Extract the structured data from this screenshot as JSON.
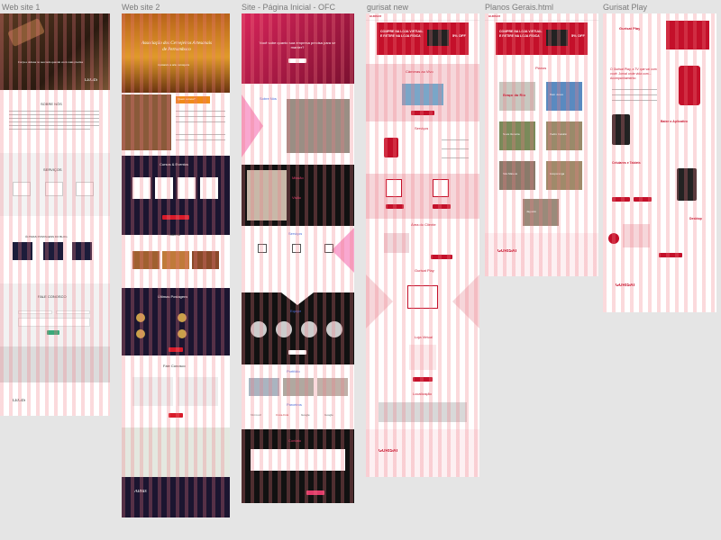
{
  "canvas": {
    "background": "#e5e5e5",
    "grid_color": "#f0788280"
  },
  "frames": [
    {
      "label": "Web site 1"
    },
    {
      "label": "Web site 2"
    },
    {
      "label": "Site - Página Inicial - OFC"
    },
    {
      "label": "gurisat new"
    },
    {
      "label": "Planos Gerais.html"
    },
    {
      "label": "Gurisat Play"
    }
  ],
  "site1": {
    "hero_text": "Força e defesa no seu lado quando você mais precisa",
    "brand": "LEGIS",
    "sobre_title": "SOBRE NÓS",
    "servicos_title": "SERVIÇOS",
    "blog_title": "ÚLTIMAS POSTAGENS DO BLOG",
    "contact_title": "FALE CONOSCO",
    "footer_brand": "LEGIS"
  },
  "site2": {
    "hero_title": "Associação dos Cervejeiros Artesanais de Pernambuco",
    "hero_sub": "Apoiando a arte cervejeira",
    "sobre_title": "Quem somos?",
    "cursos_title": "Cursos & Eventos",
    "galeria_title": "Galeria",
    "posts_title": "Últimas Postagens",
    "contact_title": "Fale Conosco",
    "footer_logo": "Albus"
  },
  "site3": {
    "hero_text": "Você sabe quanto sua empresa precisa para se manter?",
    "sobre_title": "Sobre Nós",
    "missao_title": "Missão",
    "visao_title": "Visão",
    "servicos_title": "Serviços",
    "equipe_title": "Equipe",
    "portfolio_title": "Portfólio",
    "parceiros_title": "Parceiros",
    "contato_title": "Contato",
    "partners": [
      "Microsoft",
      "Coca-Cola",
      "Google",
      "Google"
    ]
  },
  "site4": {
    "logo": "GURISAT",
    "promo": "COMPRE NA LOJA VIRTUAL E RETIRE NA LOJA FÍSICA",
    "discount": "5% OFF",
    "cameras_title": "Câmeras ao Vivo",
    "servicos_title": "Serviços",
    "area_title": "Área do Cliente",
    "play_title": "Gurisat Play",
    "loja_title": "Loja Virtual",
    "loc_title": "Localização",
    "footer_logo": "GURISAT"
  },
  "site5": {
    "logo": "GURISAT",
    "promo": "COMPRE NA LOJA VIRTUAL E RETIRE NA LOJA FÍSICA",
    "discount": "5% OFF",
    "planos_title": "Planos",
    "cities": [
      "Braço do Rio",
      "Bom Jesus",
      "Nova Venécia",
      "Pedro Canário",
      "São Mateus",
      "Ecoporanga",
      "Jaguaré"
    ],
    "footer_logo": "GURISAT"
  },
  "site6": {
    "header_title": "Gurisat Play",
    "intro_title": "O Gurisat Play, a TV que vai com você: Jornal onde vida com... Acompanhamento",
    "baixe_title": "Baixe o Aplicativo",
    "celular_title": "Celulares e Tablets",
    "desktop_title": "Desktop",
    "footer_logo": "GURISAT"
  }
}
